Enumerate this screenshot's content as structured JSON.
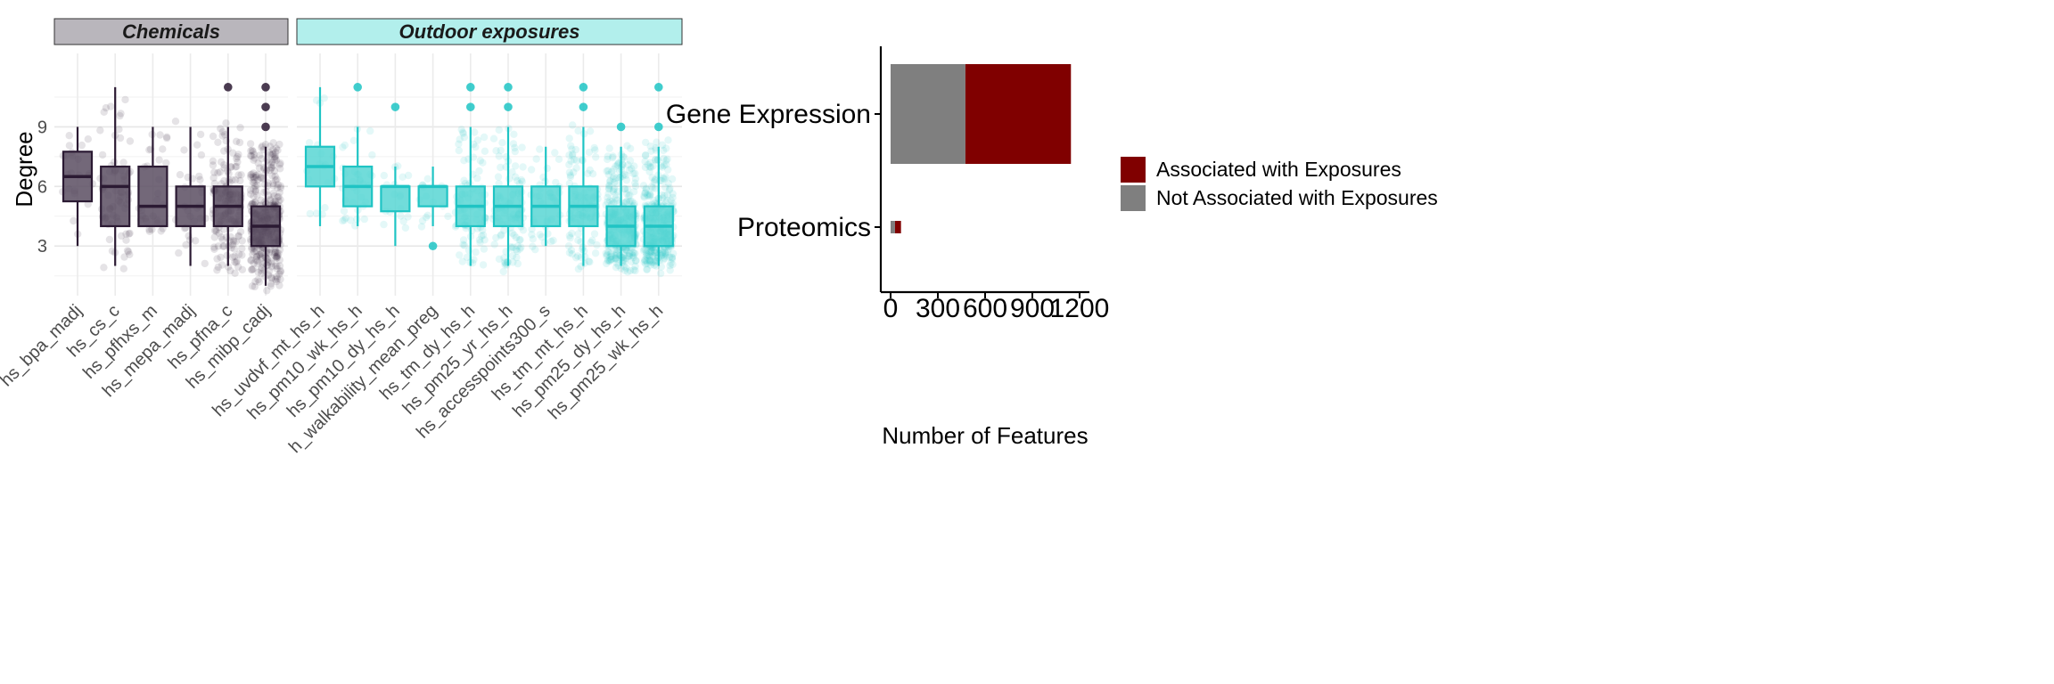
{
  "chart_data": [
    {
      "type": "box",
      "ylabel": "Degree",
      "xlabel": "",
      "ylim": [
        0.5,
        11.8
      ],
      "yticks": [
        3,
        6,
        9
      ],
      "grid": true,
      "panels": [
        {
          "strip": "Chemicals",
          "strip_color": "#b9b6bc",
          "box_color": "#2b1a33",
          "box_fill": "#5a4d62",
          "categories": [
            {
              "label": "hs_bpa_madj",
              "q1": 5.25,
              "median": 6.5,
              "q3": 7.75,
              "whisker_low": 3,
              "whisker_high": 9,
              "outliers": [],
              "n_points": 22
            },
            {
              "label": "hs_cs_c",
              "q1": 4,
              "median": 6,
              "q3": 7,
              "whisker_low": 2,
              "whisker_high": 11,
              "outliers": [],
              "n_points": 70
            },
            {
              "label": "hs_pfhxs_m",
              "q1": 4,
              "median": 5,
              "q3": 7,
              "whisker_low": 4,
              "whisker_high": 9,
              "outliers": [],
              "n_points": 30
            },
            {
              "label": "hs_mepa_madj",
              "q1": 4,
              "median": 5,
              "q3": 6,
              "whisker_low": 2,
              "whisker_high": 9,
              "outliers": [],
              "n_points": 30
            },
            {
              "label": "hs_pfna_c",
              "q1": 4,
              "median": 5,
              "q3": 6,
              "whisker_low": 2,
              "whisker_high": 9,
              "outliers": [
                11
              ],
              "n_points": 160
            },
            {
              "label": "hs_mibp_cadj",
              "q1": 3,
              "median": 4,
              "q3": 5,
              "whisker_low": 1,
              "whisker_high": 8,
              "outliers": [
                9,
                10,
                11
              ],
              "n_points": 380
            }
          ]
        },
        {
          "strip": "Outdoor exposures",
          "strip_color": "#b2efec",
          "box_color": "#1fc4c4",
          "box_fill": "#58d6d3",
          "categories": [
            {
              "label": "hs_uvdvf_mt_hs_h",
              "q1": 6,
              "median": 7,
              "q3": 8,
              "whisker_low": 4,
              "whisker_high": 11,
              "outliers": [],
              "n_points": 18
            },
            {
              "label": "hs_pm10_wk_hs_h",
              "q1": 5,
              "median": 6,
              "q3": 7,
              "whisker_low": 4,
              "whisker_high": 9,
              "outliers": [
                11
              ],
              "n_points": 35
            },
            {
              "label": "hs_pm10_dy_hs_h",
              "q1": 4.75,
              "median": 6,
              "q3": 6,
              "whisker_low": 3,
              "whisker_high": 7,
              "outliers": [
                10
              ],
              "n_points": 18
            },
            {
              "label": "h_walkability_mean_preg",
              "q1": 5,
              "median": 6,
              "q3": 6,
              "whisker_low": 4,
              "whisker_high": 7,
              "outliers": [
                3
              ],
              "n_points": 14
            },
            {
              "label": "hs_tm_dy_hs_h",
              "q1": 4,
              "median": 5,
              "q3": 6,
              "whisker_low": 2,
              "whisker_high": 9,
              "outliers": [
                10,
                11
              ],
              "n_points": 90
            },
            {
              "label": "hs_pm25_yr_hs_h",
              "q1": 4,
              "median": 5,
              "q3": 6,
              "whisker_low": 2,
              "whisker_high": 9,
              "outliers": [
                10,
                11
              ],
              "n_points": 110
            },
            {
              "label": "hs_accesspoints300_s",
              "q1": 4,
              "median": 5,
              "q3": 6,
              "whisker_low": 3,
              "whisker_high": 8,
              "outliers": [],
              "n_points": 45
            },
            {
              "label": "hs_tm_mt_hs_h",
              "q1": 4,
              "median": 5,
              "q3": 6,
              "whisker_low": 2,
              "whisker_high": 9,
              "outliers": [
                10,
                11
              ],
              "n_points": 110
            },
            {
              "label": "hs_pm25_dy_hs_h",
              "q1": 3,
              "median": 4,
              "q3": 5,
              "whisker_low": 2,
              "whisker_high": 8,
              "outliers": [
                9
              ],
              "n_points": 300
            },
            {
              "label": "hs_pm25_wk_hs_h",
              "q1": 3,
              "median": 4,
              "q3": 5,
              "whisker_low": 2,
              "whisker_high": 8,
              "outliers": [
                9,
                11
              ],
              "n_points": 320
            }
          ]
        }
      ]
    },
    {
      "type": "bar",
      "orientation": "horizontal",
      "stacked": true,
      "xlabel": "Number of Features",
      "ylabel": "",
      "xlim": [
        -30,
        1240
      ],
      "xticks": [
        0,
        300,
        600,
        900,
        1200
      ],
      "categories": [
        "Gene Expression",
        "Proteomics"
      ],
      "series": [
        {
          "name": "Not Associated with Exposures",
          "color": "#7f7f7f",
          "values": [
            475,
            28
          ]
        },
        {
          "name": "Associated with Exposures",
          "color": "#800000",
          "values": [
            670,
            38
          ]
        }
      ],
      "legend_position": "right",
      "legend_order": [
        "Associated with Exposures",
        "Not Associated with Exposures"
      ],
      "grid": false
    }
  ]
}
